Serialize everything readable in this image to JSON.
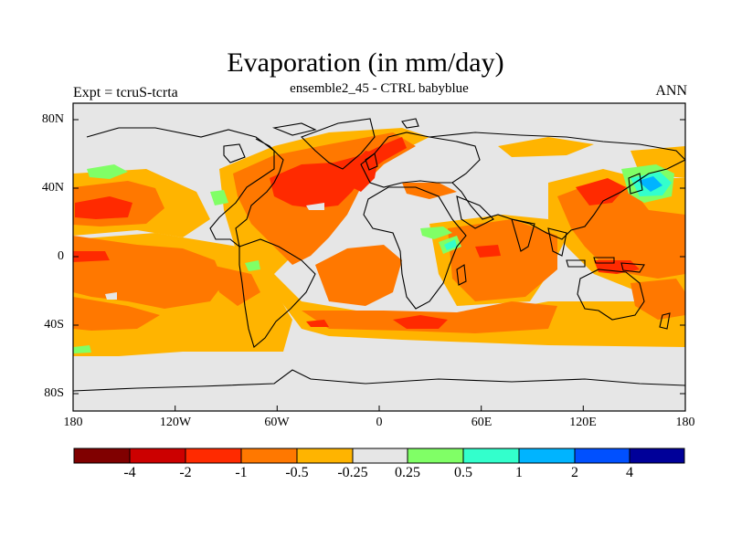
{
  "figure": {
    "title": "Evaporation (in mm/day)",
    "subtitle": "ensemble2_45 - CTRL babyblue",
    "left_label": "Expt = tcruS-tcrta",
    "right_label": "ANN"
  },
  "axes": {
    "lat_ticks": [
      "80N",
      "40N",
      "0",
      "40S",
      "80S"
    ],
    "lon_ticks": [
      "180",
      "120W",
      "60W",
      "0",
      "60E",
      "120E",
      "180"
    ]
  },
  "colorbar": {
    "colors": [
      "#800000",
      "#cc0000",
      "#ff2a00",
      "#ff7800",
      "#ffb400",
      "#e6e6e6",
      "#80ff66",
      "#33ffcc",
      "#00b4ff",
      "#0050ff",
      "#000099"
    ],
    "labels": [
      "-4",
      "-2",
      "-1",
      "-0.5",
      "-0.25",
      "0.25",
      "0.5",
      "1",
      "2",
      "4"
    ]
  },
  "palette": {
    "ocean_land_neutral": "#e6e6e6",
    "light_orange": "#ffb400",
    "orange": "#ff7800",
    "red_orange": "#ff2a00",
    "green": "#80ff66",
    "cyan": "#33ffcc",
    "blue": "#00b4ff"
  }
}
